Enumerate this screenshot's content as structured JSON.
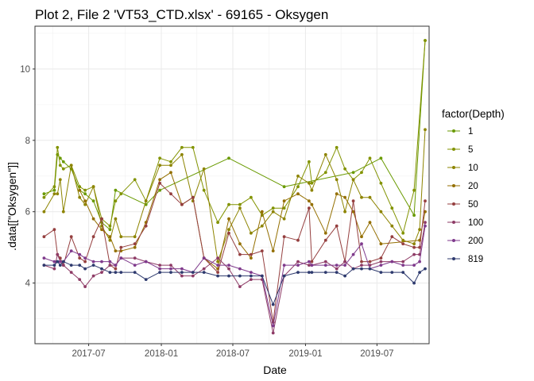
{
  "chart_data": {
    "type": "line",
    "title": "Plot 2, File 2 'VT53_CTD.xlsx' - 69165  -  Oksygen",
    "xlabel": "Date",
    "ylabel": ".data[[\"Oksygen\"]]",
    "legend_title": "factor(Depth)",
    "legend_position": "right",
    "grid": true,
    "x_type": "date",
    "xlim": [
      "2017-02-15",
      "2019-11-10"
    ],
    "ylim": [
      2.3,
      11.2
    ],
    "x_ticks": [
      {
        "date": "2017-07-01",
        "label": "2017-07"
      },
      {
        "date": "2018-01-01",
        "label": "2018-01"
      },
      {
        "date": "2018-07-01",
        "label": "2018-07"
      },
      {
        "date": "2019-01-01",
        "label": "2019-01"
      },
      {
        "date": "2019-07-01",
        "label": "2019-07"
      }
    ],
    "y_ticks": [
      4,
      6,
      8,
      10
    ],
    "dates": [
      "2017-03-10",
      "2017-04-05",
      "2017-04-13",
      "2017-04-20",
      "2017-04-28",
      "2017-05-18",
      "2017-06-08",
      "2017-06-22",
      "2017-07-13",
      "2017-08-03",
      "2017-08-24",
      "2017-09-07",
      "2017-09-21",
      "2017-10-26",
      "2017-11-23",
      "2017-12-28",
      "2018-01-25",
      "2018-02-22",
      "2018-03-22",
      "2018-04-19",
      "2018-05-24",
      "2018-06-21",
      "2018-07-19",
      "2018-08-16",
      "2018-09-13",
      "2018-10-11",
      "2018-11-08",
      "2018-12-13",
      "2019-01-10",
      "2019-01-17",
      "2019-02-21",
      "2019-03-21",
      "2019-04-11",
      "2019-05-02",
      "2019-05-23",
      "2019-06-13",
      "2019-07-11",
      "2019-08-08",
      "2019-09-05",
      "2019-10-03",
      "2019-10-17",
      "2019-10-31"
    ],
    "series": [
      {
        "name": "1",
        "color": "#699a00",
        "values": [
          6.5,
          6.6,
          7.6,
          7.5,
          7.4,
          7.2,
          6.6,
          6.5,
          6.3,
          5.7,
          5.5,
          6.6,
          null,
          null,
          6.2,
          6.6,
          null,
          null,
          null,
          null,
          null,
          7.5,
          null,
          null,
          null,
          null,
          6.7,
          null,
          null,
          null,
          null,
          null,
          null,
          7.1,
          null,
          null,
          7.5,
          null,
          null,
          5.9,
          null,
          10.8
        ]
      },
      {
        "name": "5",
        "color": "#829300",
        "values": [
          6.4,
          6.7,
          7.8,
          7.3,
          7.2,
          7.3,
          6.7,
          6.6,
          6.7,
          5.8,
          5.6,
          6.3,
          6.5,
          6.9,
          6.3,
          7.5,
          7.4,
          7.8,
          7.8,
          6.6,
          5.7,
          6.2,
          6.2,
          6.4,
          5.9,
          6.1,
          6.1,
          6.7,
          7.4,
          6.8,
          7.1,
          7.8,
          7.2,
          6.9,
          7.1,
          7.5,
          6.8,
          6.1,
          5.4,
          6.6,
          null,
          10.8
        ]
      },
      {
        "name": "10",
        "color": "#8d8400",
        "values": [
          6.0,
          6.5,
          6.5,
          6.9,
          6.0,
          7.3,
          6.4,
          6.2,
          6.7,
          5.6,
          5.2,
          5.8,
          5.3,
          5.3,
          6.3,
          7.3,
          7.3,
          7.6,
          6.3,
          7.2,
          4.6,
          5.5,
          6.1,
          5.4,
          5.6,
          6.0,
          5.8,
          7.0,
          6.8,
          6.6,
          7.6,
          6.9,
          6.0,
          6.9,
          6.4,
          6.4,
          6.0,
          5.6,
          5.2,
          5.1,
          5.5,
          8.3
        ]
      },
      {
        "name": "20",
        "color": "#946f00",
        "values": [
          null,
          null,
          null,
          null,
          null,
          null,
          6.6,
          6.3,
          5.8,
          5.5,
          5.3,
          4.9,
          4.9,
          5.0,
          5.7,
          6.9,
          7.1,
          6.2,
          6.4,
          4.7,
          4.4,
          5.8,
          5.1,
          4.7,
          6.0,
          4.9,
          6.3,
          6.5,
          6.3,
          6.2,
          5.4,
          6.5,
          6.4,
          6.0,
          5.3,
          5.7,
          5.1,
          null,
          null,
          null,
          5.2,
          6.0
        ]
      },
      {
        "name": "50",
        "color": "#953f3f",
        "values": [
          5.3,
          5.5,
          4.8,
          4.7,
          4.5,
          5.3,
          4.7,
          4.6,
          5.3,
          5.8,
          4.5,
          4.4,
          5.0,
          5.1,
          5.6,
          6.8,
          6.5,
          6.2,
          6.4,
          4.7,
          4.3,
          5.4,
          4.8,
          4.8,
          4.9,
          2.9,
          5.3,
          5.2,
          6.1,
          4.6,
          5.2,
          5.6,
          4.6,
          6.3,
          4.6,
          4.6,
          4.7,
          5.3,
          5.1,
          5.0,
          5.0,
          6.3
        ]
      },
      {
        "name": "100",
        "color": "#8e3b66",
        "values": [
          4.5,
          4.4,
          4.8,
          4.6,
          4.5,
          4.3,
          4.1,
          3.9,
          4.2,
          4.3,
          4.5,
          4.5,
          4.7,
          4.7,
          4.6,
          4.5,
          4.5,
          4.2,
          4.2,
          4.4,
          4.7,
          4.4,
          3.9,
          4.1,
          4.1,
          2.6,
          4.2,
          4.6,
          4.5,
          4.5,
          4.6,
          4.4,
          4.6,
          4.4,
          4.5,
          4.5,
          4.6,
          4.6,
          4.6,
          4.8,
          4.8,
          5.7
        ]
      },
      {
        "name": "200",
        "color": "#7f3a8c",
        "values": [
          4.7,
          4.6,
          4.6,
          4.6,
          4.6,
          4.9,
          4.8,
          4.7,
          4.6,
          4.6,
          4.6,
          4.5,
          4.7,
          4.5,
          4.6,
          4.4,
          4.4,
          4.4,
          4.3,
          4.7,
          4.5,
          4.5,
          4.4,
          4.3,
          4.2,
          2.8,
          4.5,
          4.5,
          4.6,
          4.5,
          4.5,
          4.5,
          4.5,
          4.8,
          5.1,
          4.4,
          4.5,
          4.6,
          4.5,
          4.5,
          4.6,
          5.6
        ]
      },
      {
        "name": "819",
        "color": "#2e3a6e",
        "values": [
          4.5,
          4.5,
          4.6,
          4.5,
          4.6,
          4.5,
          4.5,
          4.4,
          4.5,
          4.4,
          4.3,
          4.3,
          4.3,
          4.3,
          4.1,
          4.3,
          4.3,
          4.3,
          4.3,
          4.3,
          4.2,
          4.2,
          4.2,
          4.2,
          4.2,
          3.4,
          4.2,
          4.3,
          4.3,
          4.3,
          4.3,
          4.3,
          4.2,
          4.4,
          4.4,
          4.4,
          4.3,
          4.3,
          4.3,
          4.0,
          4.3,
          4.4
        ]
      }
    ]
  }
}
